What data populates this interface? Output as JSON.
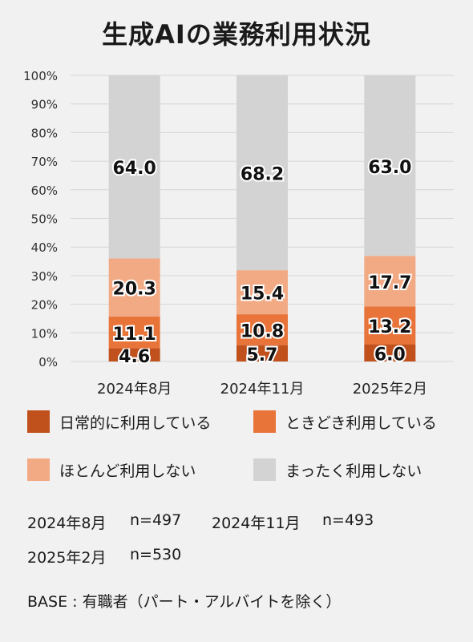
{
  "title": "生成AIの業務利用状況",
  "chart_data": {
    "type": "bar",
    "stacked": true,
    "categories": [
      "2024年8月",
      "2024年11月",
      "2025年2月"
    ],
    "series": [
      {
        "name": "日常的に利用している",
        "values": [
          4.6,
          5.7,
          6.0
        ],
        "color": "#c0501c"
      },
      {
        "name": "ときどき利用している",
        "values": [
          11.1,
          10.8,
          13.2
        ],
        "color": "#e8743a"
      },
      {
        "name": "ほとんど利用しない",
        "values": [
          20.3,
          15.4,
          17.7
        ],
        "color": "#f2aa85"
      },
      {
        "name": "まったく利用しない",
        "values": [
          64.0,
          68.2,
          63.0
        ],
        "color": "#d3d3d3"
      }
    ],
    "ylim": [
      0,
      100
    ],
    "yticks": [
      "0%",
      "10%",
      "20%",
      "30%",
      "40%",
      "50%",
      "60%",
      "70%",
      "80%",
      "90%",
      "100%"
    ],
    "grid": true,
    "legend_position": "bottom"
  },
  "samples": [
    {
      "period": "2024年8月",
      "n": "n=497"
    },
    {
      "period": "2024年11月",
      "n": "n=493"
    },
    {
      "period": "2025年2月",
      "n": "n=530"
    }
  ],
  "base_note": "BASE : 有職者（パート・アルバイトを除く）"
}
